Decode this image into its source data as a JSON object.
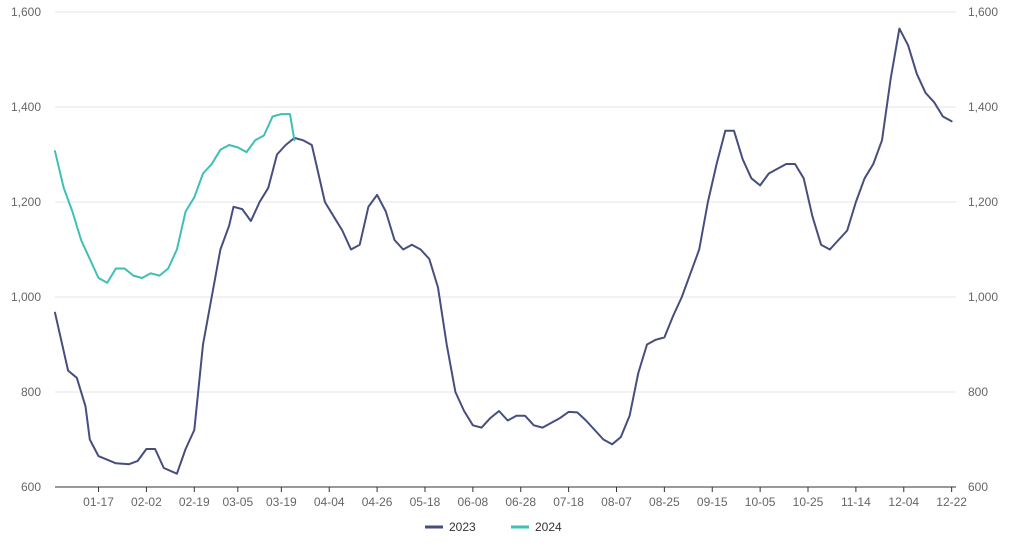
{
  "chart_data": {
    "type": "line",
    "title": "",
    "xlabel": "",
    "ylabel": "",
    "ylim": [
      600,
      1600
    ],
    "y_ticks": [
      600,
      800,
      1000,
      1200,
      1400,
      1600
    ],
    "y_tick_labels": [
      "600",
      "800",
      "1,000",
      "1,200",
      "1,400",
      "1,600"
    ],
    "secondary_y_ticks": [
      600,
      800,
      1000,
      1200,
      1400,
      1600
    ],
    "secondary_y_tick_labels": [
      "600",
      "800",
      "1,000",
      "1,200",
      "1,400",
      "1,600"
    ],
    "x_tick_labels": [
      "01-17",
      "02-02",
      "02-19",
      "03-05",
      "03-19",
      "04-04",
      "04-26",
      "05-18",
      "06-08",
      "06-28",
      "07-18",
      "08-07",
      "08-25",
      "09-15",
      "10-05",
      "10-25",
      "11-14",
      "12-04",
      "12-22"
    ],
    "x_tick_index": [
      10,
      21,
      32,
      42,
      52,
      63,
      74,
      85,
      96,
      107,
      118,
      129,
      140,
      151,
      162,
      173,
      184,
      195,
      206
    ],
    "x_count": 208,
    "grid": true,
    "legend": "bottom-center",
    "series": [
      {
        "name": "2023",
        "color": "#464e7e",
        "values": [
          [
            0,
            967
          ],
          [
            3,
            845
          ],
          [
            5,
            830
          ],
          [
            7,
            770
          ],
          [
            8,
            700
          ],
          [
            10,
            665
          ],
          [
            14,
            650
          ],
          [
            17,
            648
          ],
          [
            19,
            655
          ],
          [
            21,
            680
          ],
          [
            23,
            680
          ],
          [
            25,
            640
          ],
          [
            28,
            628
          ],
          [
            30,
            680
          ],
          [
            32,
            720
          ],
          [
            34,
            900
          ],
          [
            36,
            1000
          ],
          [
            38,
            1100
          ],
          [
            40,
            1150
          ],
          [
            41,
            1190
          ],
          [
            43,
            1185
          ],
          [
            45,
            1160
          ],
          [
            47,
            1200
          ],
          [
            49,
            1230
          ],
          [
            51,
            1300
          ],
          [
            53,
            1320
          ],
          [
            55,
            1335
          ],
          [
            57,
            1330
          ],
          [
            59,
            1320
          ],
          [
            60,
            1280
          ],
          [
            62,
            1200
          ],
          [
            64,
            1170
          ],
          [
            66,
            1140
          ],
          [
            68,
            1100
          ],
          [
            70,
            1110
          ],
          [
            72,
            1190
          ],
          [
            74,
            1215
          ],
          [
            76,
            1180
          ],
          [
            78,
            1120
          ],
          [
            80,
            1100
          ],
          [
            82,
            1110
          ],
          [
            84,
            1100
          ],
          [
            86,
            1080
          ],
          [
            88,
            1020
          ],
          [
            90,
            900
          ],
          [
            92,
            800
          ],
          [
            94,
            760
          ],
          [
            96,
            730
          ],
          [
            98,
            725
          ],
          [
            100,
            745
          ],
          [
            102,
            760
          ],
          [
            104,
            740
          ],
          [
            106,
            750
          ],
          [
            108,
            750
          ],
          [
            110,
            730
          ],
          [
            112,
            725
          ],
          [
            114,
            735
          ],
          [
            116,
            745
          ],
          [
            118,
            758
          ],
          [
            120,
            757
          ],
          [
            122,
            740
          ],
          [
            124,
            720
          ],
          [
            126,
            700
          ],
          [
            128,
            690
          ],
          [
            130,
            705
          ],
          [
            132,
            750
          ],
          [
            134,
            840
          ],
          [
            136,
            900
          ],
          [
            138,
            910
          ],
          [
            140,
            915
          ],
          [
            142,
            960
          ],
          [
            144,
            1000
          ],
          [
            146,
            1050
          ],
          [
            148,
            1100
          ],
          [
            150,
            1200
          ],
          [
            152,
            1280
          ],
          [
            154,
            1350
          ],
          [
            156,
            1350
          ],
          [
            158,
            1290
          ],
          [
            160,
            1250
          ],
          [
            162,
            1235
          ],
          [
            164,
            1260
          ],
          [
            166,
            1270
          ],
          [
            168,
            1280
          ],
          [
            170,
            1280
          ],
          [
            172,
            1250
          ],
          [
            174,
            1170
          ],
          [
            176,
            1110
          ],
          [
            178,
            1100
          ],
          [
            180,
            1120
          ],
          [
            182,
            1140
          ],
          [
            184,
            1200
          ],
          [
            186,
            1250
          ],
          [
            188,
            1280
          ],
          [
            190,
            1330
          ],
          [
            192,
            1460
          ],
          [
            194,
            1565
          ],
          [
            196,
            1530
          ],
          [
            198,
            1470
          ],
          [
            200,
            1430
          ],
          [
            202,
            1410
          ],
          [
            204,
            1380
          ],
          [
            206,
            1370
          ]
        ]
      },
      {
        "name": "2024",
        "color": "#3fbfb5",
        "values": [
          [
            0,
            1307
          ],
          [
            2,
            1230
          ],
          [
            4,
            1180
          ],
          [
            6,
            1120
          ],
          [
            8,
            1080
          ],
          [
            10,
            1040
          ],
          [
            12,
            1030
          ],
          [
            14,
            1060
          ],
          [
            16,
            1060
          ],
          [
            18,
            1045
          ],
          [
            20,
            1040
          ],
          [
            22,
            1050
          ],
          [
            24,
            1045
          ],
          [
            26,
            1060
          ],
          [
            28,
            1100
          ],
          [
            30,
            1180
          ],
          [
            32,
            1210
          ],
          [
            34,
            1260
          ],
          [
            36,
            1280
          ],
          [
            38,
            1310
          ],
          [
            40,
            1320
          ],
          [
            42,
            1315
          ],
          [
            44,
            1305
          ],
          [
            46,
            1330
          ],
          [
            48,
            1340
          ],
          [
            50,
            1380
          ],
          [
            52,
            1385
          ],
          [
            54,
            1385
          ],
          [
            55,
            1330
          ]
        ]
      }
    ]
  }
}
